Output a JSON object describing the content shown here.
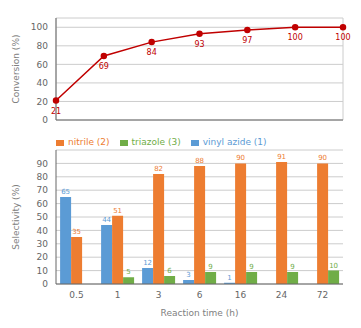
{
  "chart_data": [
    {
      "type": "line",
      "categories": [
        "0.5",
        "1",
        "3",
        "6",
        "16",
        "24",
        "72"
      ],
      "values": [
        21,
        69,
        84,
        93,
        97,
        100,
        100
      ],
      "color": "#c00000",
      "marker": "circle",
      "ylabel": "Conversion (%)",
      "ylim": [
        0,
        110
      ],
      "yticks": [
        0,
        20,
        40,
        60,
        80,
        100
      ],
      "grid": true,
      "data_labels": true,
      "tick_labels": "y"
    },
    {
      "type": "bar",
      "categories": [
        "0.5",
        "1",
        "3",
        "6",
        "16",
        "24",
        "72"
      ],
      "series": [
        {
          "name": "vinyl azide (1)",
          "color": "#5b9bd5",
          "values": [
            65,
            44,
            12,
            3,
            1,
            0,
            0
          ]
        },
        {
          "name": "nitrile (2)",
          "color": "#ed7d31",
          "values": [
            35,
            51,
            82,
            88,
            90,
            91,
            90
          ]
        },
        {
          "name": "triazole (3)",
          "color": "#70ad47",
          "values": [
            0,
            5,
            6,
            9,
            9,
            9,
            10
          ]
        }
      ],
      "xlabel": "Reaction time (h)",
      "ylabel": "Selectivity (%)",
      "ylim": [
        0,
        100
      ],
      "yticks": [
        0,
        10,
        20,
        30,
        40,
        50,
        60,
        70,
        80,
        90
      ],
      "grid": "y",
      "legend": "upper left",
      "data_labels": true
    }
  ]
}
